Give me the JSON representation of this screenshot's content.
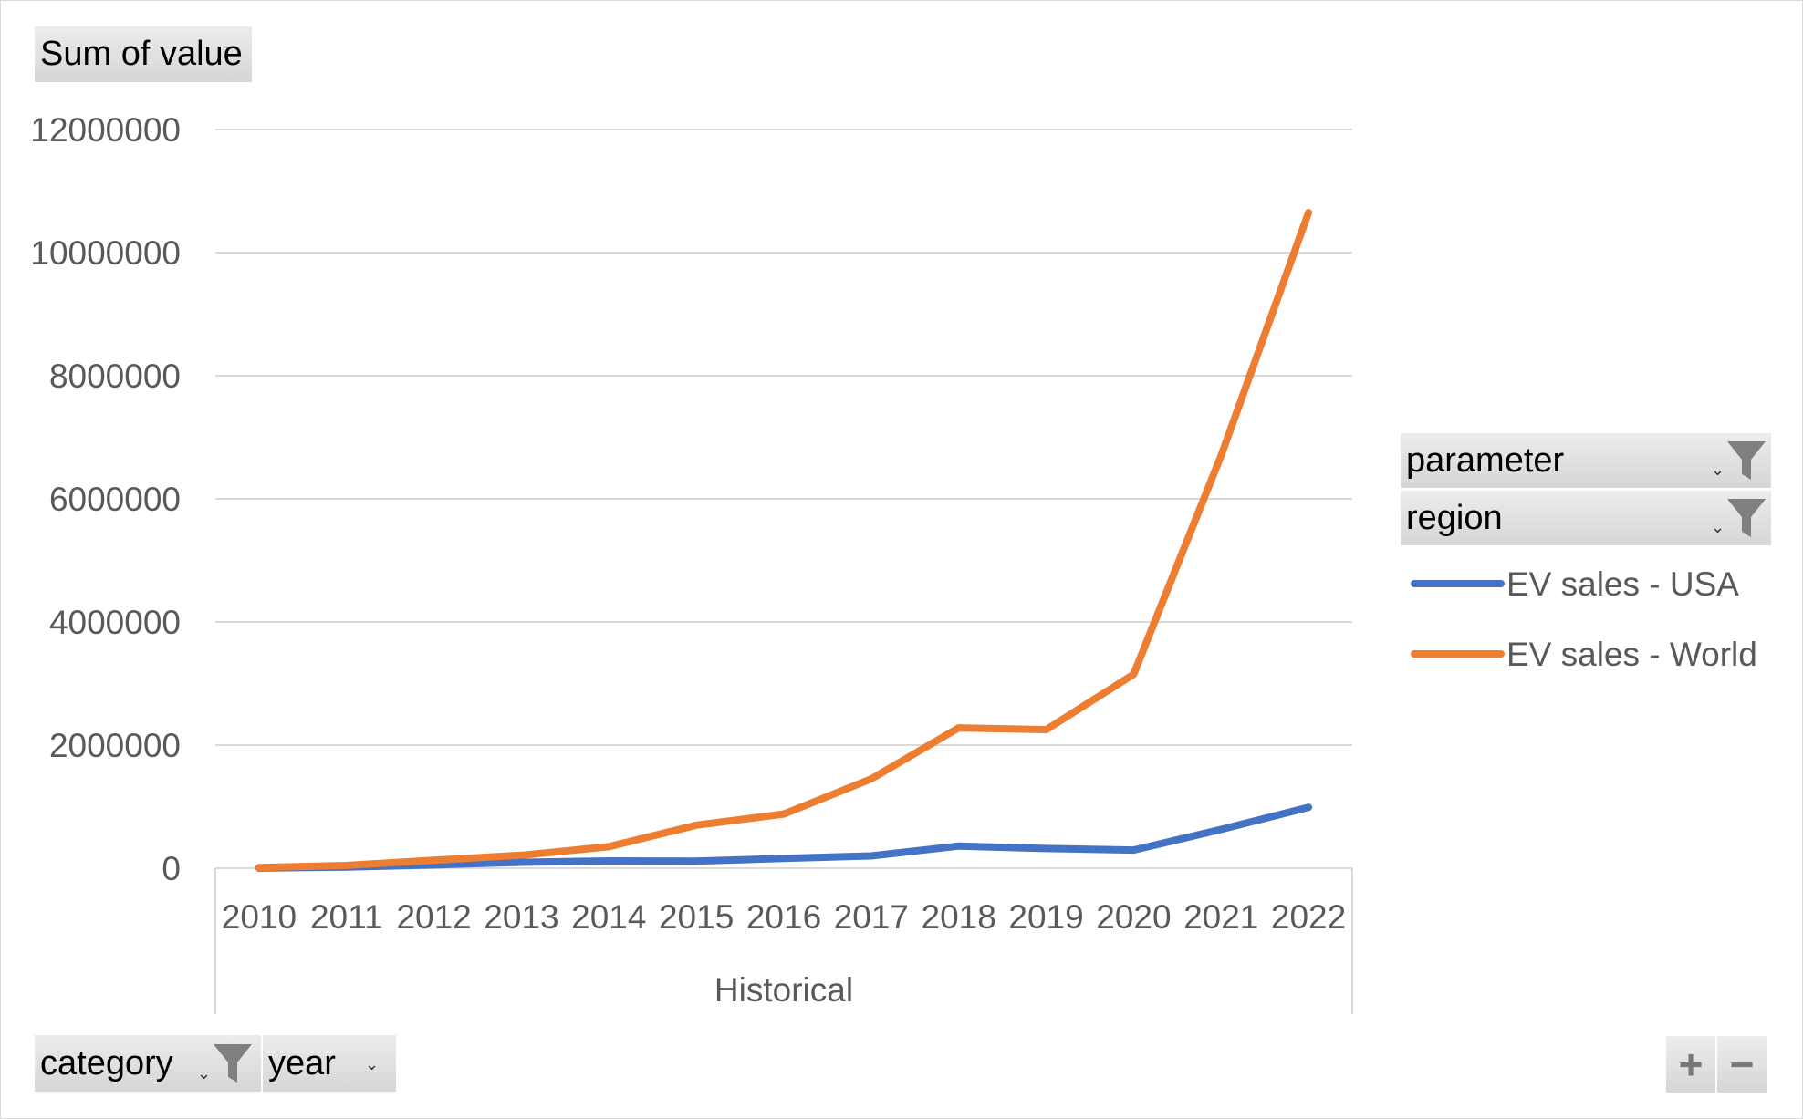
{
  "value_field": "Sum of value",
  "filters": {
    "parameter": "parameter",
    "region": "region",
    "category": "category",
    "year": "year"
  },
  "zoom": {
    "plus": "+",
    "minus": "−"
  },
  "colors": {
    "usa": "#4472C4",
    "world": "#ED7D31",
    "grid": "#d9d9d9",
    "axis_text": "#595959"
  },
  "chart_data": {
    "type": "line",
    "group_label": "Historical",
    "categories": [
      "2010",
      "2011",
      "2012",
      "2013",
      "2014",
      "2015",
      "2016",
      "2017",
      "2018",
      "2019",
      "2020",
      "2021",
      "2022"
    ],
    "y_ticks": [
      "0",
      "2000000",
      "4000000",
      "6000000",
      "8000000",
      "10000000",
      "12000000"
    ],
    "ylim": [
      0,
      12000000
    ],
    "legend_position": "right",
    "grid": true,
    "series": [
      {
        "name": "EV sales - USA",
        "color": "#4472C4",
        "values": [
          1200,
          18000,
          53000,
          97000,
          118000,
          114000,
          160000,
          200000,
          360000,
          320000,
          295000,
          630000,
          990000
        ]
      },
      {
        "name": "EV sales - World",
        "color": "#ED7D31",
        "values": [
          10000,
          45000,
          130000,
          210000,
          350000,
          700000,
          880000,
          1450000,
          2280000,
          2250000,
          3150000,
          6700000,
          10650000
        ]
      }
    ]
  }
}
